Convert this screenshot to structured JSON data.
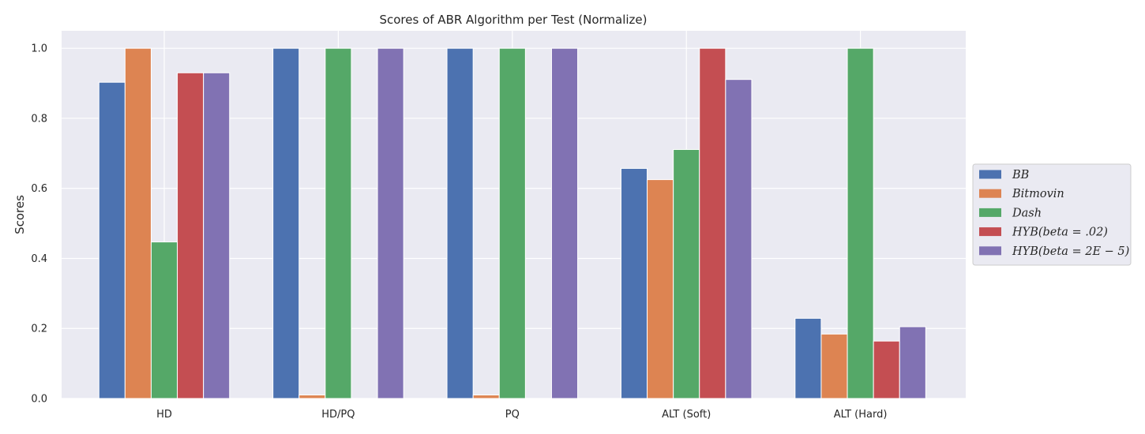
{
  "chart_data": {
    "type": "bar",
    "title": "Scores of ABR Algorithm per Test (Normalize)",
    "xlabel": "",
    "ylabel": "Scores",
    "ylim": [
      0,
      1.05
    ],
    "yticks": [
      0.0,
      0.2,
      0.4,
      0.6,
      0.8,
      1.0
    ],
    "ytick_labels": [
      "0.0",
      "0.2",
      "0.4",
      "0.6",
      "0.8",
      "1.0"
    ],
    "categories": [
      "HD",
      "HD/PQ",
      "PQ",
      "ALT (Soft)",
      "ALT (Hard)"
    ],
    "series": [
      {
        "name": "BB",
        "color": "#4c72b0",
        "values": [
          0.903,
          1.0,
          1.0,
          0.657,
          0.229
        ]
      },
      {
        "name": "Bitmovin",
        "color": "#dd8452",
        "values": [
          1.0,
          0.01,
          0.01,
          0.625,
          0.184
        ]
      },
      {
        "name": "Dash",
        "color": "#55a868",
        "values": [
          0.447,
          1.0,
          1.0,
          0.711,
          1.0
        ]
      },
      {
        "name": "HYB(beta = .02)",
        "color": "#c44e52",
        "values": [
          0.93,
          0.0,
          0.0,
          1.0,
          0.164
        ]
      },
      {
        "name": "HYB(beta = 2E − 5)",
        "color": "#8172b3",
        "values": [
          0.93,
          1.0,
          1.0,
          0.911,
          0.205
        ]
      }
    ],
    "grid": true,
    "legend_position": "right"
  }
}
